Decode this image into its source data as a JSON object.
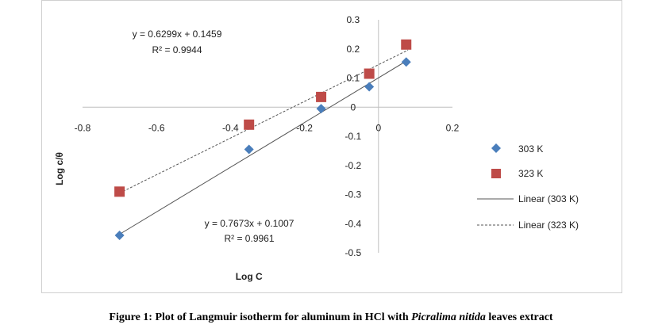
{
  "chart_data": {
    "type": "scatter",
    "xlabel": "Log C",
    "ylabel": "Log c/θ",
    "xlim": [
      -0.8,
      0.2
    ],
    "ylim": [
      -0.5,
      0.3
    ],
    "xticks": [
      "-0.8",
      "-0.6",
      "-0.4",
      "-0.2",
      "0",
      "0.2"
    ],
    "yticks": [
      "0.3",
      "0.2",
      "0.1",
      "0",
      "-0.1",
      "-0.2",
      "-0.3",
      "-0.4",
      "-0.5"
    ],
    "grid": false,
    "legend_position": "right",
    "series": [
      {
        "name": "303 K",
        "marker": "diamond",
        "color": "#4a7ebb",
        "x": [
          -0.7,
          -0.35,
          -0.155,
          -0.025,
          0.075
        ],
        "y": [
          -0.44,
          -0.145,
          -0.005,
          0.07,
          0.155
        ]
      },
      {
        "name": "323 K",
        "marker": "square",
        "color": "#be4b48",
        "x": [
          -0.7,
          -0.35,
          -0.155,
          -0.025,
          0.075
        ],
        "y": [
          -0.29,
          -0.06,
          0.035,
          0.115,
          0.215
        ]
      }
    ],
    "trendlines": [
      {
        "name": "Linear (303 K)",
        "style": "solid",
        "color": "#555555",
        "slope": 0.7673,
        "intercept": 0.1007,
        "equation": "y = 0.7673x + 0.1007",
        "r2": "R² = 0.9961"
      },
      {
        "name": "Linear (323 K)",
        "style": "dashed",
        "color": "#555555",
        "slope": 0.6299,
        "intercept": 0.1459,
        "equation": "y = 0.6299x + 0.1459",
        "r2": "R² = 0.9944"
      }
    ]
  },
  "caption": {
    "prefix": "Figure 1: Plot of Langmuir isotherm for aluminum in HCl with ",
    "italic": "Picralima nitida",
    "suffix": " leaves extract"
  }
}
